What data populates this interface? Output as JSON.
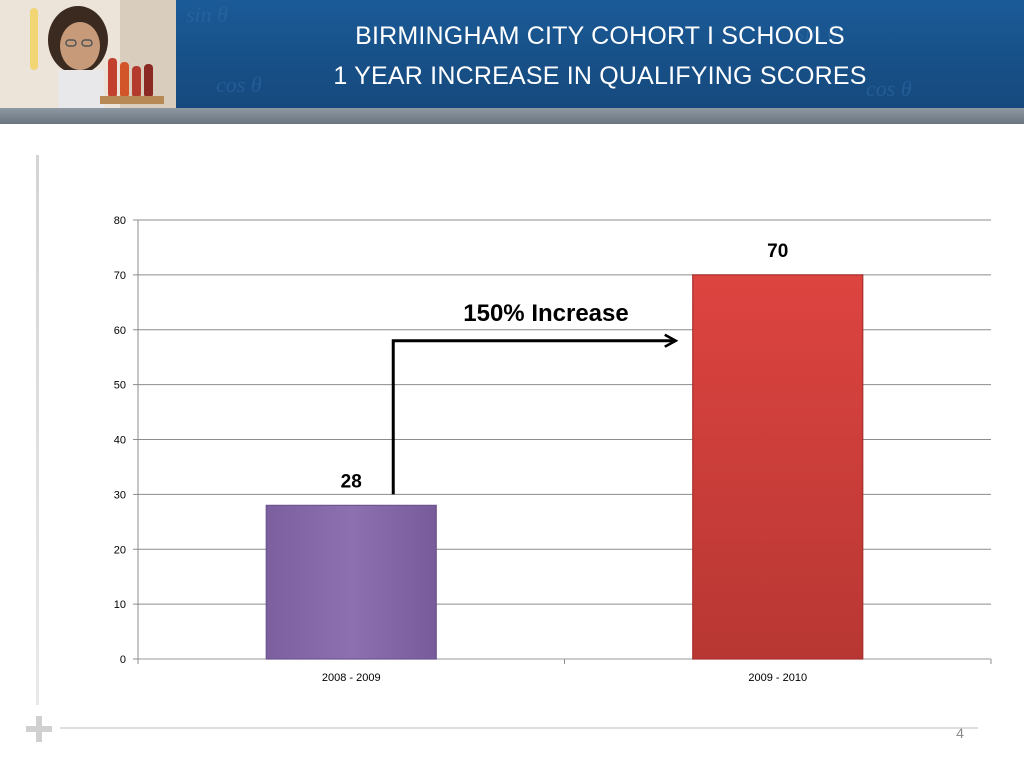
{
  "slide": {
    "title_line1": "BIRMINGHAM CITY COHORT I SCHOOLS",
    "title_line2": "1 YEAR INCREASE IN QUALIFYING SCORES",
    "page_number": "4"
  },
  "colors": {
    "header_blue": "#1b5b98",
    "bar_purple": "#8a6cad",
    "bar_red": "#d6403d",
    "arrow": "#000000"
  },
  "chart_data": {
    "type": "bar",
    "categories": [
      "2008 - 2009",
      "2009 - 2010"
    ],
    "values": [
      28,
      70
    ],
    "data_labels": [
      "28",
      "70"
    ],
    "ylim": [
      0,
      80
    ],
    "yticks": [
      0,
      10,
      20,
      30,
      40,
      50,
      60,
      70,
      80
    ],
    "grid": true,
    "legend": "none",
    "annotation": "150% Increase"
  }
}
